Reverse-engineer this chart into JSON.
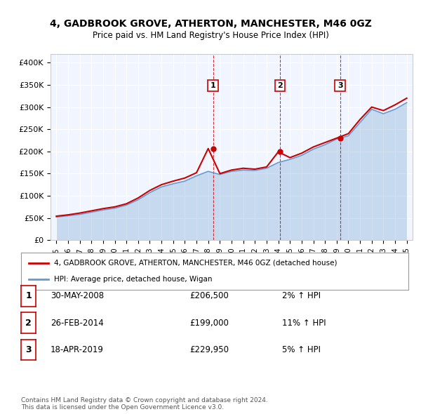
{
  "title": "4, GADBROOK GROVE, ATHERTON, MANCHESTER, M46 0GZ",
  "subtitle": "Price paid vs. HM Land Registry's House Price Index (HPI)",
  "legend_label_red": "4, GADBROOK GROVE, ATHERTON, MANCHESTER, M46 0GZ (detached house)",
  "legend_label_blue": "HPI: Average price, detached house, Wigan",
  "footer1": "Contains HM Land Registry data © Crown copyright and database right 2024.",
  "footer2": "This data is licensed under the Open Government Licence v3.0.",
  "sales": [
    {
      "num": 1,
      "date": "30-MAY-2008",
      "price": 206500,
      "year": 2008.41,
      "pct": "2%",
      "dir": "↑"
    },
    {
      "num": 2,
      "date": "26-FEB-2014",
      "price": 199000,
      "year": 2014.15,
      "pct": "11%",
      "dir": "↑"
    },
    {
      "num": 3,
      "date": "18-APR-2019",
      "price": 229950,
      "year": 2019.29,
      "pct": "5%",
      "dir": "↑"
    }
  ],
  "hpi_years": [
    1995,
    1996,
    1997,
    1998,
    1999,
    2000,
    2001,
    2002,
    2003,
    2004,
    2005,
    2006,
    2007,
    2008,
    2009,
    2010,
    2011,
    2012,
    2013,
    2014,
    2015,
    2016,
    2017,
    2018,
    2019,
    2020,
    2021,
    2022,
    2023,
    2024,
    2025
  ],
  "hpi_values": [
    52000,
    55000,
    58000,
    63000,
    68000,
    72000,
    79000,
    91000,
    107000,
    120000,
    127000,
    133000,
    145000,
    155000,
    148000,
    155000,
    158000,
    157000,
    162000,
    175000,
    182000,
    191000,
    205000,
    215000,
    228000,
    235000,
    265000,
    295000,
    285000,
    295000,
    310000
  ],
  "red_years": [
    1995,
    1996,
    1997,
    1998,
    1999,
    2000,
    2001,
    2002,
    2003,
    2004,
    2005,
    2006,
    2007,
    2008,
    2009,
    2010,
    2011,
    2012,
    2013,
    2014,
    2015,
    2016,
    2017,
    2018,
    2019,
    2020,
    2021,
    2022,
    2023,
    2024,
    2025
  ],
  "red_values": [
    54000,
    57000,
    61000,
    66000,
    71000,
    75000,
    82000,
    95000,
    112000,
    125000,
    133000,
    140000,
    152000,
    206500,
    150000,
    158000,
    162000,
    160000,
    165000,
    199000,
    186000,
    196000,
    210000,
    220000,
    229950,
    240000,
    272000,
    300000,
    292000,
    305000,
    320000
  ],
  "ylim": [
    0,
    420000
  ],
  "xlim": [
    1994.5,
    2025.5
  ],
  "yticks": [
    0,
    50000,
    100000,
    150000,
    200000,
    250000,
    300000,
    350000,
    400000
  ],
  "ytick_labels": [
    "£0",
    "£50K",
    "£100K",
    "£150K",
    "£200K",
    "£250K",
    "£300K",
    "£350K",
    "£400K"
  ],
  "xtick_years": [
    1995,
    1996,
    1997,
    1998,
    1999,
    2000,
    2001,
    2002,
    2003,
    2004,
    2005,
    2006,
    2007,
    2008,
    2009,
    2010,
    2011,
    2012,
    2013,
    2014,
    2015,
    2016,
    2017,
    2018,
    2019,
    2020,
    2021,
    2022,
    2023,
    2024,
    2025
  ],
  "red_color": "#cc0000",
  "blue_color": "#6699cc",
  "blue_fill": "#ddeeff",
  "marker_box_color": "#cc0000",
  "bg_color": "#ffffff",
  "plot_bg": "#f0f5ff"
}
